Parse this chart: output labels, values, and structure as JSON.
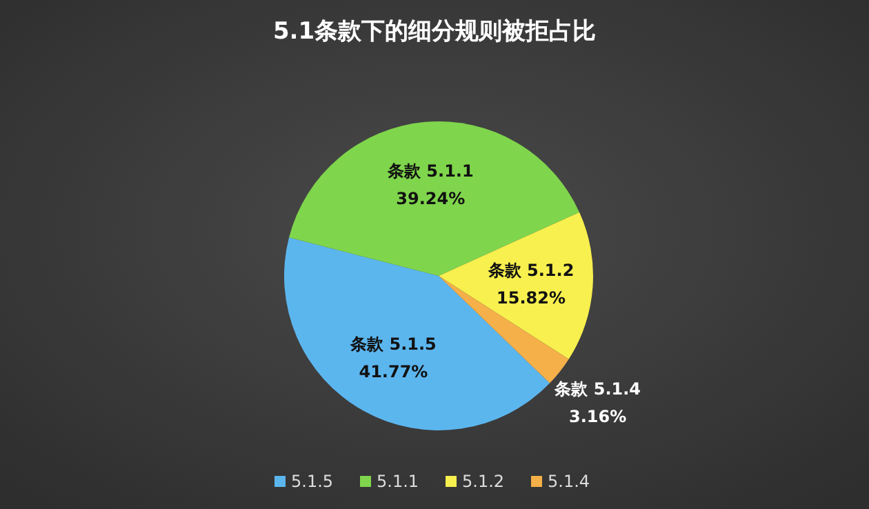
{
  "chart_data": {
    "type": "pie",
    "title": "5.1条款下的细分规则被拒占比",
    "categories": [
      "5.1.5",
      "5.1.1",
      "5.1.2",
      "5.1.4"
    ],
    "values": [
      41.77,
      39.24,
      15.82,
      3.16
    ],
    "colors": [
      "#5cb6ee",
      "#7fd54c",
      "#f7f04e",
      "#f5b04a"
    ],
    "value_labels": [
      "条款 5.1.5 41.77%",
      "条款 5.1.1 39.24%",
      "条款 5.1.2 15.82%",
      "条款 5.1.4 3.16%"
    ],
    "legend": "bottom"
  }
}
